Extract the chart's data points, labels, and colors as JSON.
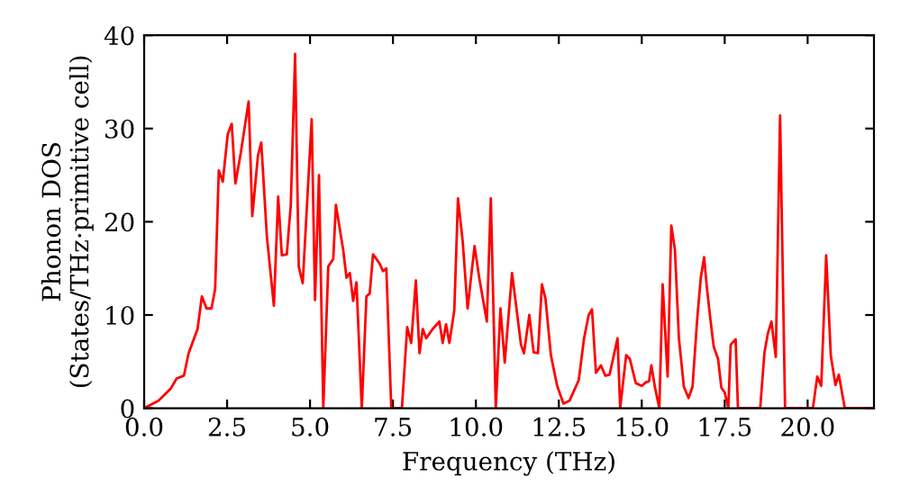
{
  "chart_data": {
    "type": "line",
    "xlabel": "Frequency (THz)",
    "ylabel": "Phonon DOS\n(States/THz·primitive cell)",
    "xlim": [
      0,
      22
    ],
    "ylim": [
      0,
      40
    ],
    "xticks": [
      {
        "value": 0,
        "label": "0.0"
      },
      {
        "value": 2.5,
        "label": "2.5"
      },
      {
        "value": 5,
        "label": "5.0"
      },
      {
        "value": 7.5,
        "label": "7.5"
      },
      {
        "value": 10,
        "label": "10.0"
      },
      {
        "value": 12.5,
        "label": "12.5"
      },
      {
        "value": 15,
        "label": "15.0"
      },
      {
        "value": 17.5,
        "label": "17.5"
      },
      {
        "value": 20,
        "label": "20.0"
      }
    ],
    "yticks": [
      0,
      10,
      20,
      30,
      40
    ],
    "grid": false,
    "legend": false,
    "marker": "none",
    "line_style": "solid",
    "series": [
      {
        "color": "#ff0000",
        "x": [
          0,
          0.43,
          0.8,
          0.98,
          1.2,
          1.34,
          1.61,
          1.74,
          1.88,
          2.03,
          2.14,
          2.25,
          2.37,
          2.52,
          2.64,
          2.75,
          2.9,
          3.15,
          3.26,
          3.43,
          3.53,
          3.7,
          3.91,
          4.04,
          4.15,
          4.3,
          4.42,
          4.55,
          4.66,
          4.78,
          5.05,
          5.15,
          5.27,
          5.4,
          5.55,
          5.7,
          5.78,
          6.0,
          6.1,
          6.2,
          6.3,
          6.4,
          6.56,
          6.7,
          6.8,
          6.9,
          7.1,
          7.2,
          7.3,
          7.45,
          7.77,
          7.93,
          8.05,
          8.19,
          8.3,
          8.4,
          8.5,
          8.7,
          8.9,
          9.0,
          9.1,
          9.2,
          9.35,
          9.46,
          9.6,
          9.75,
          9.96,
          10.1,
          10.33,
          10.45,
          10.6,
          10.74,
          10.87,
          11.09,
          11.36,
          11.45,
          11.61,
          11.74,
          11.87,
          11.99,
          12.1,
          12.26,
          12.45,
          12.64,
          12.82,
          13.1,
          13.26,
          13.4,
          13.5,
          13.62,
          13.77,
          13.9,
          14.03,
          14.27,
          14.35,
          14.53,
          14.64,
          14.82,
          15.0,
          15.13,
          15.22,
          15.29,
          15.4,
          15.53,
          15.63,
          15.78,
          15.89,
          16.0,
          16.12,
          16.27,
          16.41,
          16.53,
          16.67,
          16.78,
          16.88,
          16.97,
          17.07,
          17.17,
          17.3,
          17.4,
          17.5,
          17.61,
          17.68,
          17.83,
          17.9,
          18.57,
          18.7,
          18.8,
          18.91,
          19.04,
          19.17,
          19.32,
          20.16,
          20.29,
          20.41,
          20.56,
          20.7,
          20.84,
          20.94,
          21.12,
          22
        ],
        "values": [
          0,
          0.8,
          2.1,
          3.2,
          3.5,
          5.9,
          8.5,
          12,
          10.7,
          10.7,
          12.8,
          25.5,
          24.3,
          29.4,
          30.5,
          24.1,
          27.1,
          32.9,
          20.6,
          27.1,
          28.5,
          18.4,
          11,
          22.7,
          16.4,
          16.5,
          21.8,
          38,
          15.2,
          13.4,
          31,
          11.6,
          25,
          0,
          15.2,
          16,
          21.8,
          17,
          14,
          14.5,
          11.5,
          13.5,
          0,
          12,
          12.3,
          16.5,
          15.5,
          14.7,
          15,
          0,
          0,
          8.7,
          7,
          13.7,
          5.9,
          8.5,
          7.5,
          8.5,
          9.3,
          7,
          9,
          7,
          10.5,
          22.5,
          18,
          10.7,
          17.4,
          14,
          9.3,
          22.5,
          0,
          10.7,
          4.9,
          14.5,
          6.8,
          5.9,
          10,
          6,
          5.9,
          13.3,
          11.7,
          5.7,
          2.4,
          0.5,
          0.8,
          3,
          7.5,
          10,
          10.6,
          3.8,
          4.6,
          3.5,
          3.6,
          7.5,
          0,
          5.7,
          5.3,
          2.7,
          2.4,
          2.8,
          2.9,
          4.6,
          2.2,
          0,
          13.3,
          3.4,
          19.6,
          17,
          7.5,
          2.3,
          1.1,
          2.3,
          9.5,
          14,
          16.2,
          12.7,
          9.5,
          6.6,
          5.3,
          2.2,
          1.7,
          0,
          6.8,
          7.4,
          0,
          0,
          6,
          8,
          9.3,
          5.5,
          31.4,
          0,
          0,
          3.4,
          2.4,
          16.4,
          5.6,
          2.5,
          3.6,
          0,
          0
        ]
      }
    ]
  }
}
